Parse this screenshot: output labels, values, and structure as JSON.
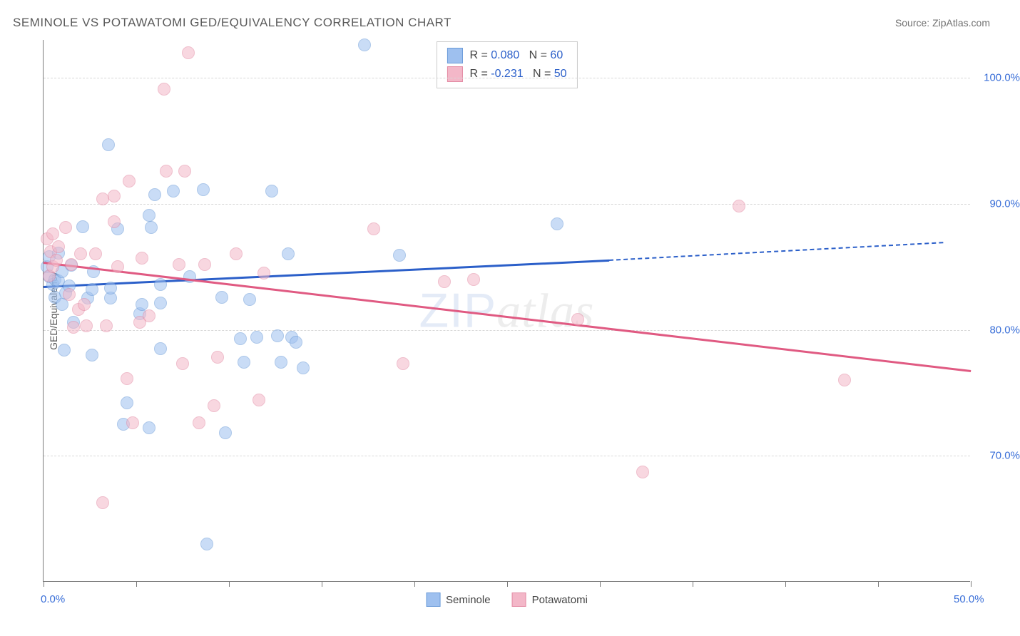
{
  "title": "SEMINOLE VS POTAWATOMI GED/EQUIVALENCY CORRELATION CHART",
  "source": "Source: ZipAtlas.com",
  "y_axis_label": "GED/Equivalency",
  "watermark_zip": "ZIP",
  "watermark_atlas": "atlas",
  "chart": {
    "type": "scatter",
    "xlim": [
      0,
      50
    ],
    "ylim": [
      60,
      103
    ],
    "x_ticks": [
      0,
      5,
      10,
      15,
      20,
      25,
      30,
      35,
      40,
      45,
      50
    ],
    "x_tick_labels": {
      "0": "0.0%",
      "50": "50.0%"
    },
    "y_gridlines": [
      70,
      80,
      90,
      100
    ],
    "y_tick_labels": {
      "70": "70.0%",
      "80": "80.0%",
      "90": "90.0%",
      "100": "100.0%"
    },
    "grid_color": "#d8d8d8",
    "axis_color": "#7a7a7a",
    "background_color": "#ffffff",
    "tick_label_color": "#3a6fd8",
    "marker_radius": 9,
    "marker_opacity": 0.55,
    "series": [
      {
        "name": "Seminole",
        "label": "Seminole",
        "fill_color": "#9ec0ef",
        "stroke_color": "#6a9ad8",
        "trend_color": "#2b5fc9",
        "R": "0.080",
        "N": "60",
        "trend": {
          "x1": 0,
          "y1": 83.5,
          "x2": 30.5,
          "y2": 85.6,
          "dash_to_x": 48.5,
          "dash_to_y": 87.0
        },
        "points": [
          [
            0.2,
            85.0
          ],
          [
            0.3,
            85.8
          ],
          [
            0.3,
            84.2
          ],
          [
            0.5,
            83.6
          ],
          [
            0.6,
            84.0
          ],
          [
            0.6,
            82.6
          ],
          [
            0.8,
            86.1
          ],
          [
            0.8,
            83.9
          ],
          [
            1.0,
            84.6
          ],
          [
            1.0,
            82.0
          ],
          [
            1.1,
            78.4
          ],
          [
            1.2,
            82.9
          ],
          [
            1.4,
            83.5
          ],
          [
            1.5,
            85.1
          ],
          [
            1.6,
            80.6
          ],
          [
            2.1,
            88.2
          ],
          [
            2.4,
            82.5
          ],
          [
            2.6,
            83.2
          ],
          [
            2.6,
            78.0
          ],
          [
            2.7,
            84.6
          ],
          [
            3.5,
            94.7
          ],
          [
            3.6,
            82.5
          ],
          [
            3.6,
            83.3
          ],
          [
            4.0,
            88.0
          ],
          [
            4.3,
            72.5
          ],
          [
            4.5,
            74.2
          ],
          [
            5.2,
            81.3
          ],
          [
            5.3,
            82.0
          ],
          [
            5.7,
            89.1
          ],
          [
            5.7,
            72.2
          ],
          [
            5.8,
            88.1
          ],
          [
            6.0,
            90.7
          ],
          [
            6.3,
            82.1
          ],
          [
            6.3,
            78.5
          ],
          [
            6.3,
            83.6
          ],
          [
            7.0,
            91.0
          ],
          [
            7.9,
            84.2
          ],
          [
            8.6,
            91.1
          ],
          [
            8.8,
            63.0
          ],
          [
            9.6,
            82.6
          ],
          [
            9.8,
            71.8
          ],
          [
            10.6,
            79.3
          ],
          [
            10.8,
            77.4
          ],
          [
            11.1,
            82.4
          ],
          [
            11.5,
            79.4
          ],
          [
            12.3,
            91.0
          ],
          [
            12.6,
            79.5
          ],
          [
            12.8,
            77.4
          ],
          [
            13.2,
            86.0
          ],
          [
            13.4,
            79.4
          ],
          [
            13.6,
            79.0
          ],
          [
            14.0,
            77.0
          ],
          [
            17.3,
            102.6
          ],
          [
            19.2,
            85.9
          ],
          [
            27.7,
            88.4
          ]
        ]
      },
      {
        "name": "Potawatomi",
        "label": "Potawatomi",
        "fill_color": "#f3b7c8",
        "stroke_color": "#e38aa3",
        "trend_color": "#e05a82",
        "R": "-0.231",
        "N": "50",
        "trend": {
          "x1": 0,
          "y1": 85.4,
          "x2": 50,
          "y2": 76.8
        },
        "points": [
          [
            0.2,
            87.2
          ],
          [
            0.3,
            84.3
          ],
          [
            0.4,
            86.2
          ],
          [
            0.5,
            85.0
          ],
          [
            0.5,
            87.6
          ],
          [
            0.7,
            85.5
          ],
          [
            0.8,
            86.6
          ],
          [
            1.2,
            88.1
          ],
          [
            1.4,
            82.8
          ],
          [
            1.5,
            85.2
          ],
          [
            1.6,
            80.2
          ],
          [
            1.9,
            81.6
          ],
          [
            2.0,
            86.0
          ],
          [
            2.2,
            82.0
          ],
          [
            2.3,
            80.3
          ],
          [
            2.8,
            86.0
          ],
          [
            3.2,
            66.3
          ],
          [
            3.2,
            90.4
          ],
          [
            3.4,
            80.3
          ],
          [
            3.8,
            88.6
          ],
          [
            3.8,
            90.6
          ],
          [
            4.0,
            85.0
          ],
          [
            4.5,
            76.1
          ],
          [
            4.6,
            91.8
          ],
          [
            4.8,
            72.6
          ],
          [
            5.2,
            80.6
          ],
          [
            5.3,
            85.7
          ],
          [
            5.7,
            81.1
          ],
          [
            6.5,
            99.1
          ],
          [
            6.6,
            92.6
          ],
          [
            7.3,
            85.2
          ],
          [
            7.5,
            77.3
          ],
          [
            7.6,
            92.6
          ],
          [
            7.8,
            102.0
          ],
          [
            8.4,
            72.6
          ],
          [
            8.7,
            85.2
          ],
          [
            9.2,
            74.0
          ],
          [
            9.4,
            77.8
          ],
          [
            10.4,
            86.0
          ],
          [
            11.6,
            74.4
          ],
          [
            11.9,
            84.5
          ],
          [
            17.8,
            88.0
          ],
          [
            19.4,
            77.3
          ],
          [
            21.6,
            83.8
          ],
          [
            23.2,
            84.0
          ],
          [
            28.8,
            80.8
          ],
          [
            32.3,
            68.7
          ],
          [
            37.5,
            89.8
          ],
          [
            43.2,
            76.0
          ]
        ]
      }
    ],
    "legend_box": {
      "r_label": "R = ",
      "n_label": "N = "
    }
  }
}
